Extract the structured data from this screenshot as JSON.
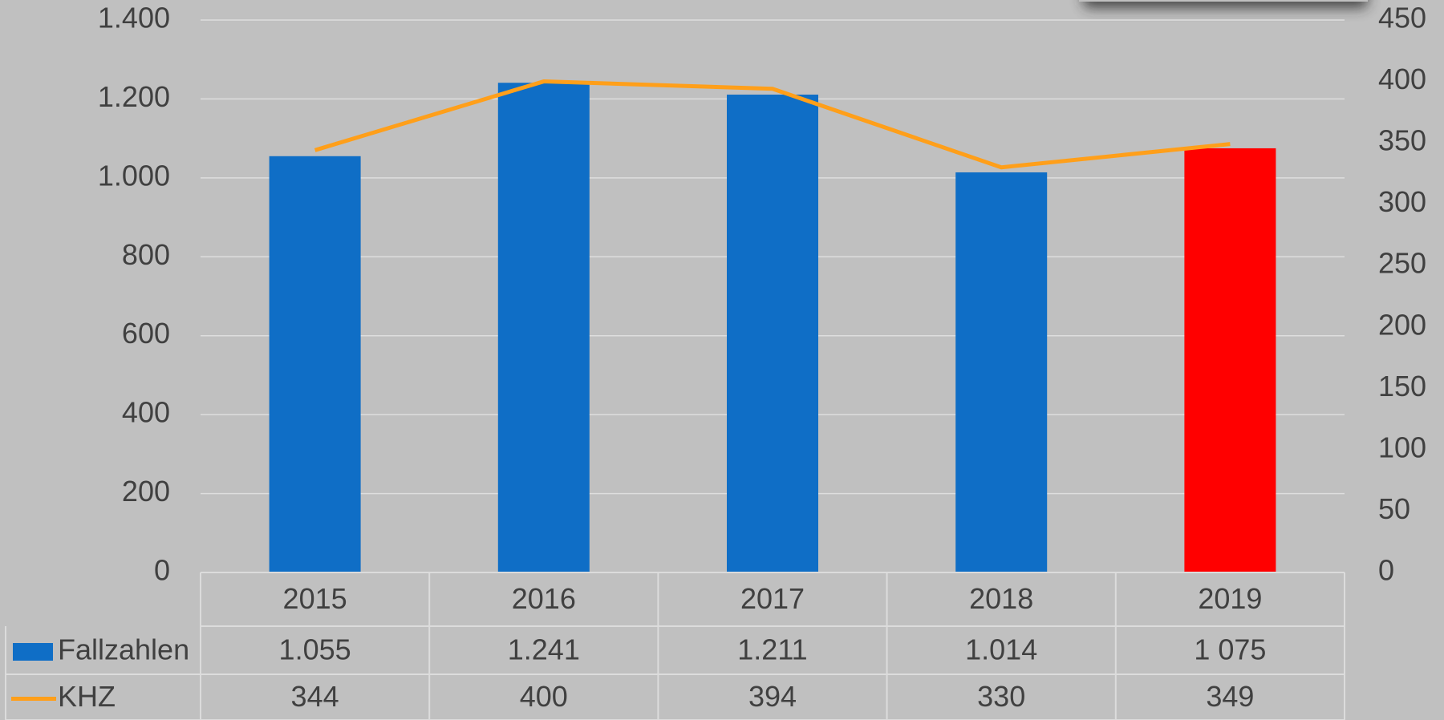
{
  "chart_data": {
    "type": "bar",
    "categories": [
      "2015",
      "2016",
      "2017",
      "2018",
      "2019"
    ],
    "series": [
      {
        "name": "Fallzahlen",
        "type": "bar",
        "color": "#0f6ec6",
        "colors": [
          "#0f6ec6",
          "#0f6ec6",
          "#0f6ec6",
          "#0f6ec6",
          "#ff0000"
        ],
        "values": [
          1055,
          1241,
          1211,
          1014,
          1075
        ],
        "value_labels": [
          "1.055",
          "1.241",
          "1.211",
          "1.014",
          "1 075"
        ]
      },
      {
        "name": "KHZ",
        "type": "line",
        "axis": "y2",
        "color": "#ff9f1a",
        "values": [
          344,
          400,
          394,
          330,
          349
        ]
      }
    ],
    "ylim": [
      0,
      1400
    ],
    "yticks": [
      0,
      {
        "value": 200,
        "label": "200"
      },
      400,
      600,
      800,
      {
        "value": 1000,
        "label": "1.000"
      },
      {
        "value": 1200,
        "label": "1.200"
      },
      {
        "value": 1400,
        "label": "1.400"
      }
    ],
    "y2lim": [
      0,
      450
    ],
    "y2ticks": [
      0,
      50,
      100,
      150,
      200,
      250,
      300,
      350,
      400,
      450
    ],
    "grid": true,
    "data_table": true
  }
}
